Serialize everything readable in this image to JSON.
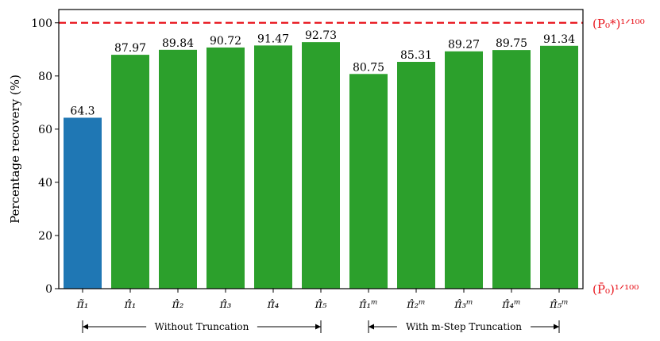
{
  "chart_data": {
    "type": "bar",
    "categories": [
      "π̃₁",
      "π̂₁",
      "π̂₂",
      "π̂₃",
      "π̂₄",
      "π̂₅",
      "π̂₁ᵐ",
      "π̂₂ᵐ",
      "π̂₃ᵐ",
      "π̂₄ᵐ",
      "π̂₅ᵐ"
    ],
    "values": [
      64.3,
      87.97,
      89.84,
      90.72,
      91.47,
      92.73,
      80.75,
      85.31,
      89.27,
      89.75,
      91.34
    ],
    "value_labels": [
      "64.3",
      "87.97",
      "89.84",
      "90.72",
      "91.47",
      "92.73",
      "80.75",
      "85.31",
      "89.27",
      "89.75",
      "91.34"
    ],
    "bar_colors": [
      "#1f77b4",
      "#2ca02c",
      "#2ca02c",
      "#2ca02c",
      "#2ca02c",
      "#2ca02c",
      "#2ca02c",
      "#2ca02c",
      "#2ca02c",
      "#2ca02c",
      "#2ca02c"
    ],
    "ylabel": "Percentage recovery (%)",
    "ylim": [
      0,
      105
    ],
    "yticks": [
      0,
      20,
      40,
      60,
      80,
      100
    ],
    "ytick_labels": [
      "0",
      "20",
      "40",
      "60",
      "80",
      "100"
    ],
    "reference_lines": [
      {
        "value": 100,
        "label": "(P₀*)^1/100",
        "color": "#e8141c",
        "style": "dashed"
      }
    ],
    "reference_labels_right": {
      "top": "(P₀*)¹ᐟ¹⁰⁰",
      "bottom": "(P̄₀)¹ᐟ¹⁰⁰",
      "color": "#e8141c"
    },
    "groups": [
      {
        "label": "Without Truncation",
        "from_index": 0,
        "to_index": 5
      },
      {
        "label": "With m-Step Truncation",
        "from_index": 6,
        "to_index": 10
      }
    ],
    "grid": false
  }
}
